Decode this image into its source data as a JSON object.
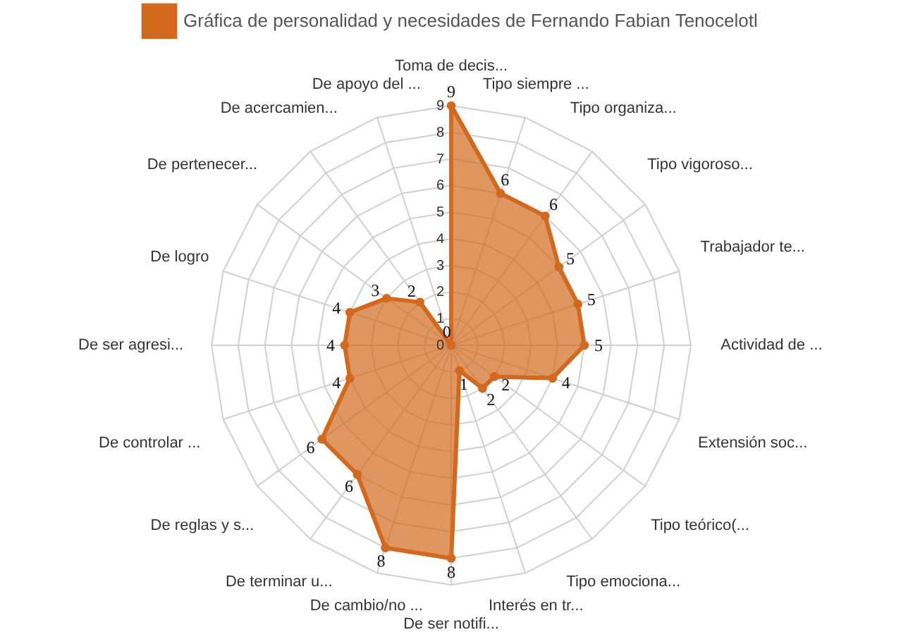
{
  "chart_data": {
    "type": "radar",
    "categories": [
      "Toma de decis...",
      "Tipo siempre ...",
      "Tipo organiza...",
      "Tipo vigoroso...",
      "Trabajador te...",
      "Actividad de ...",
      "Extensión soc...",
      "Tipo teórico(...",
      "Tipo emociona...",
      "Interés en tr...",
      "De ser notifi...",
      "De cambio/no ...",
      "De terminar u...",
      "De reglas y s...",
      "De controlar ...",
      "De ser agresi...",
      "De logro",
      "De pertenecer...",
      "De acercamien...",
      "De apoyo del ..."
    ],
    "series": [
      {
        "name": "Gráfica de personalidad y necesidades de Fernando Fabian Tenocelotl",
        "color": "#d2691e",
        "values": [
          9,
          6,
          6,
          5,
          5,
          5,
          4,
          2,
          2,
          1,
          8,
          8,
          6,
          6,
          4,
          4,
          4,
          3,
          2,
          0
        ]
      }
    ],
    "ylim": [
      0,
      9
    ],
    "yticks": [
      0,
      1,
      2,
      3,
      4,
      5,
      6,
      7,
      8,
      9
    ],
    "grid": true,
    "legend": "top",
    "marker": "circle",
    "data_labels": true
  }
}
